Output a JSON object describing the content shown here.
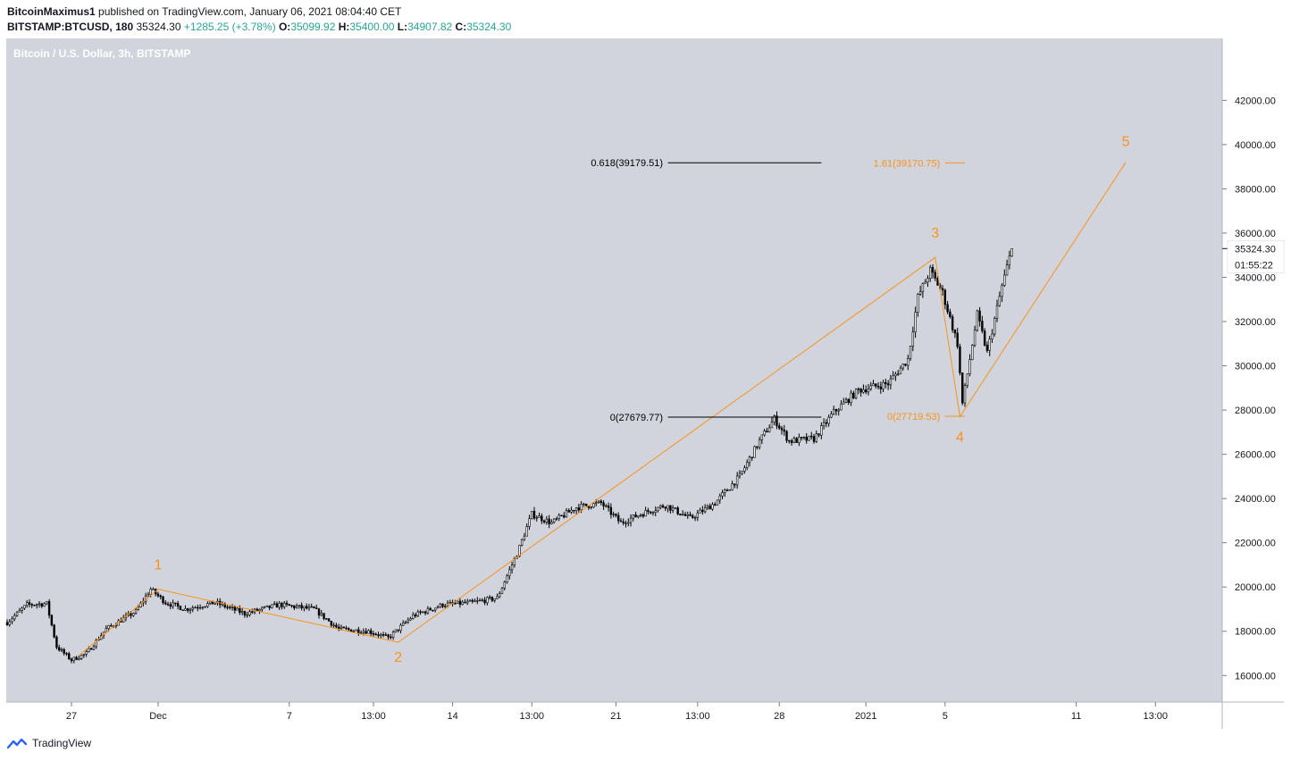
{
  "header": {
    "author": "BitcoinMaximus1",
    "published_text": " published on TradingView.com, January 06, 2021 08:04:40 CET",
    "symbol": "BITSTAMP:BTCUSD, 180",
    "last": "35324.30",
    "change": "+1285.25 (+3.78%)",
    "open_label": "O:",
    "open": "35099.92",
    "high_label": "H:",
    "high": "35400.00",
    "low_label": "L:",
    "low": "34907.82",
    "close_label": "C:",
    "close": "35324.30"
  },
  "footer": {
    "brand": "TradingView"
  },
  "colors": {
    "plot_bg": "#d1d4dc",
    "orange": "#f7931a",
    "candle": "#000000"
  },
  "chart_data": {
    "type": "candlestick",
    "title": "Bitcoin / U.S. Dollar, 3h, BITSTAMP",
    "ylabel": "USD",
    "ylim": [
      14800,
      44800
    ],
    "y_ticks": [
      16000,
      18000,
      20000,
      22000,
      24000,
      26000,
      28000,
      30000,
      32000,
      34000,
      36000,
      38000,
      40000,
      42000
    ],
    "y_tick_labels": [
      "16000.00",
      "18000.00",
      "20000.00",
      "22000.00",
      "24000.00",
      "26000.00",
      "28000.00",
      "30000.00",
      "32000.00",
      "34000.00",
      "36000.00",
      "38000.00",
      "40000.00",
      "42000.00"
    ],
    "x_tick_labels": [
      "27",
      "Dec",
      "7",
      "13:00",
      "14",
      "13:00",
      "21",
      "13:00",
      "28",
      "2021",
      "5",
      "11",
      "13:00"
    ],
    "x_tick_index": [
      26,
      61,
      114,
      148,
      180,
      212,
      246,
      279,
      312,
      347,
      379,
      432,
      464
    ],
    "last_price_label": "35324.30",
    "countdown_label": "01:55:22",
    "price_path": [
      {
        "i": 0,
        "p": 18400
      },
      {
        "i": 8,
        "p": 19200
      },
      {
        "i": 16,
        "p": 19250
      },
      {
        "i": 20,
        "p": 17300
      },
      {
        "i": 26,
        "p": 16700
      },
      {
        "i": 32,
        "p": 17000
      },
      {
        "i": 40,
        "p": 18100
      },
      {
        "i": 52,
        "p": 18900
      },
      {
        "i": 58,
        "p": 19900
      },
      {
        "i": 64,
        "p": 19300
      },
      {
        "i": 72,
        "p": 19000
      },
      {
        "i": 84,
        "p": 19300
      },
      {
        "i": 96,
        "p": 18800
      },
      {
        "i": 110,
        "p": 19200
      },
      {
        "i": 124,
        "p": 19000
      },
      {
        "i": 134,
        "p": 18100
      },
      {
        "i": 146,
        "p": 18000
      },
      {
        "i": 154,
        "p": 17700
      },
      {
        "i": 164,
        "p": 18700
      },
      {
        "i": 176,
        "p": 19200
      },
      {
        "i": 188,
        "p": 19300
      },
      {
        "i": 198,
        "p": 19500
      },
      {
        "i": 206,
        "p": 21500
      },
      {
        "i": 212,
        "p": 23300
      },
      {
        "i": 220,
        "p": 22900
      },
      {
        "i": 230,
        "p": 23600
      },
      {
        "i": 240,
        "p": 23800
      },
      {
        "i": 248,
        "p": 22900
      },
      {
        "i": 256,
        "p": 23300
      },
      {
        "i": 266,
        "p": 23700
      },
      {
        "i": 276,
        "p": 23100
      },
      {
        "i": 286,
        "p": 23800
      },
      {
        "i": 296,
        "p": 25000
      },
      {
        "i": 304,
        "p": 26600
      },
      {
        "i": 310,
        "p": 27600
      },
      {
        "i": 316,
        "p": 26600
      },
      {
        "i": 326,
        "p": 26700
      },
      {
        "i": 334,
        "p": 27900
      },
      {
        "i": 344,
        "p": 28900
      },
      {
        "i": 356,
        "p": 29200
      },
      {
        "i": 364,
        "p": 30300
      },
      {
        "i": 368,
        "p": 33100
      },
      {
        "i": 373,
        "p": 34300
      },
      {
        "i": 378,
        "p": 33300
      },
      {
        "i": 384,
        "p": 31000
      },
      {
        "i": 386,
        "p": 28300
      },
      {
        "i": 392,
        "p": 32300
      },
      {
        "i": 396,
        "p": 30600
      },
      {
        "i": 402,
        "p": 33600
      },
      {
        "i": 406,
        "p": 35300
      }
    ],
    "elliott_waves": [
      {
        "label": "1",
        "p": 19900
      },
      {
        "label": "2",
        "p": 17500
      },
      {
        "label": "3",
        "p": 34900
      },
      {
        "label": "4",
        "p": 27700
      },
      {
        "label": "5",
        "p": 39200
      }
    ],
    "fib_levels": [
      {
        "label": "0.618(39179.51)",
        "value": 39179.51,
        "color": "#000000"
      },
      {
        "label": "0(27679.77)",
        "value": 27679.77,
        "color": "#000000"
      },
      {
        "label": "1.61(39170.75)",
        "value": 39170.75,
        "color": "#f7931a"
      },
      {
        "label": "0(27719.53)",
        "value": 27719.53,
        "color": "#f7931a"
      }
    ]
  }
}
